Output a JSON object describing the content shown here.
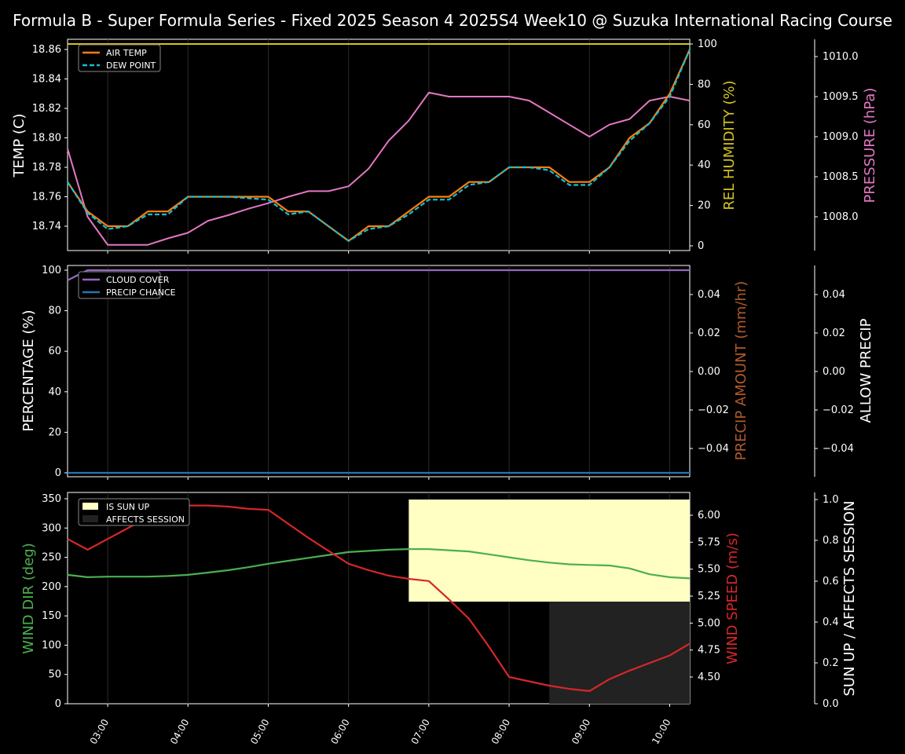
{
  "title": "Formula B - Super Formula Series - Fixed 2025 Season 4 2025S4 Week10 @ Suzuka International Racing Course",
  "x_ticks": [
    "03:00",
    "04:00",
    "05:00",
    "06:00",
    "07:00",
    "08:00",
    "09:00",
    "10:00"
  ],
  "chart_data": [
    {
      "type": "line",
      "panel": "top",
      "ylabel": "TEMP (C)",
      "ylim": [
        18.725,
        18.865
      ],
      "yticks": [
        "18.74",
        "18.76",
        "18.78",
        "18.80",
        "18.82",
        "18.84",
        "18.86"
      ],
      "y2label": "REL HUMIDITY (%)",
      "y2ticks": [
        "0",
        "20",
        "40",
        "60",
        "80",
        "100"
      ],
      "y3label": "PRESSURE (hPa)",
      "y3ticks": [
        "1008.0",
        "1008.5",
        "1009.0",
        "1009.5",
        "1010.0"
      ],
      "legend": [
        "AIR TEMP",
        "DEW POINT"
      ],
      "legend_position": "top-left",
      "x": [
        "02:30",
        "02:45",
        "03:00",
        "03:15",
        "03:30",
        "03:45",
        "04:00",
        "04:15",
        "04:30",
        "04:45",
        "05:00",
        "05:15",
        "05:30",
        "05:45",
        "06:00",
        "06:15",
        "06:30",
        "06:45",
        "07:00",
        "07:15",
        "07:30",
        "07:45",
        "08:00",
        "08:15",
        "08:30",
        "08:45",
        "09:00",
        "09:15",
        "09:30",
        "09:45",
        "10:00",
        "10:15"
      ],
      "series": [
        {
          "name": "AIR TEMP",
          "color": "#ff7f0e",
          "values": [
            18.77,
            18.75,
            18.74,
            18.74,
            18.75,
            18.75,
            18.76,
            18.76,
            18.76,
            18.76,
            18.76,
            18.75,
            18.75,
            18.74,
            18.73,
            18.74,
            18.74,
            18.75,
            18.76,
            18.76,
            18.77,
            18.77,
            18.78,
            18.78,
            18.78,
            18.77,
            18.77,
            18.78,
            18.8,
            18.81,
            18.83,
            18.86
          ]
        },
        {
          "name": "DEW POINT",
          "color": "#17becf",
          "dashed": true,
          "values": [
            18.77,
            18.749,
            18.738,
            18.74,
            18.748,
            18.748,
            18.76,
            18.76,
            18.76,
            18.759,
            18.758,
            18.748,
            18.75,
            18.74,
            18.73,
            18.738,
            18.74,
            18.748,
            18.758,
            18.758,
            18.768,
            18.77,
            18.78,
            18.78,
            18.778,
            18.768,
            18.768,
            18.78,
            18.798,
            18.81,
            18.828,
            18.86
          ]
        },
        {
          "name": "REL HUMIDITY",
          "color": "#d4c31f",
          "values": [
            100,
            100,
            100,
            100,
            100,
            100,
            100,
            100,
            100,
            100,
            100,
            100,
            100,
            100,
            100,
            100,
            100,
            100,
            100,
            100,
            100,
            100,
            100,
            100,
            100,
            100,
            100,
            100,
            100,
            100,
            100,
            100
          ]
        },
        {
          "name": "PRESSURE",
          "color": "#e377c2",
          "values": [
            1008.85,
            1008.0,
            1007.65,
            1007.65,
            1007.65,
            1007.73,
            1007.8,
            1007.95,
            1008.02,
            1008.1,
            1008.17,
            1008.25,
            1008.32,
            1008.32,
            1008.38,
            1008.6,
            1008.95,
            1009.2,
            1009.55,
            1009.5,
            1009.5,
            1009.5,
            1009.5,
            1009.45,
            1009.3,
            1009.15,
            1009.0,
            1009.15,
            1009.22,
            1009.45,
            1009.5,
            1009.45
          ]
        }
      ]
    },
    {
      "type": "line",
      "panel": "middle",
      "ylabel": "PERCENTAGE (%)",
      "yticks": [
        "0",
        "20",
        "40",
        "60",
        "80",
        "100"
      ],
      "ylim": [
        -2,
        103
      ],
      "y2label": "PRECIP AMOUNT (mm/hr)",
      "y2ticks": [
        "−0.04",
        "−0.02",
        "0.00",
        "0.02",
        "0.04"
      ],
      "y3label": "ALLOW PRECIP",
      "y3ticks": [
        "−0.04",
        "−0.02",
        "0.00",
        "0.02",
        "0.04"
      ],
      "legend": [
        "CLOUD COVER",
        "PRECIP CHANCE"
      ],
      "legend_position": "top-left",
      "series": [
        {
          "name": "CLOUD COVER",
          "color": "#9467bd",
          "x": [
            "02:30",
            "02:45",
            "10:15"
          ],
          "values": [
            95,
            100,
            100
          ]
        },
        {
          "name": "PRECIP CHANCE",
          "color": "#1f77b4",
          "x": [
            "02:30",
            "10:15"
          ],
          "values": [
            0,
            0
          ]
        }
      ]
    },
    {
      "type": "line",
      "panel": "bottom",
      "ylabel": "WIND DIR (deg)",
      "yticks": [
        "0",
        "50",
        "100",
        "150",
        "200",
        "250",
        "300",
        "350"
      ],
      "ylim": [
        0,
        360
      ],
      "y2label": "WIND SPEED (m/s)",
      "y2ticks": [
        "4.50",
        "4.75",
        "5.00",
        "5.25",
        "5.50",
        "5.75",
        "6.00"
      ],
      "y3label": "SUN UP / AFFECTS SESSION",
      "y3ticks": [
        "0.0",
        "0.2",
        "0.4",
        "0.6",
        "0.8",
        "1.0"
      ],
      "legend": [
        "IS SUN UP",
        "AFFECTS SESSION"
      ],
      "legend_position": "top-left",
      "x": [
        "02:30",
        "02:45",
        "03:00",
        "03:15",
        "03:30",
        "03:45",
        "04:00",
        "04:15",
        "04:30",
        "04:45",
        "05:00",
        "05:15",
        "05:30",
        "05:45",
        "06:00",
        "06:15",
        "06:30",
        "06:45",
        "07:00",
        "07:15",
        "07:30",
        "07:45",
        "08:00",
        "08:15",
        "08:30",
        "08:45",
        "09:00",
        "09:15",
        "09:30",
        "09:45",
        "10:00",
        "10:15"
      ],
      "series": [
        {
          "name": "WIND DIR",
          "color": "#4caf50",
          "values": [
            220,
            216,
            217,
            217,
            217,
            218,
            220,
            224,
            228,
            233,
            239,
            244,
            249,
            254,
            259,
            261,
            263,
            264,
            264,
            262,
            260,
            255,
            250,
            245,
            241,
            238,
            237,
            236,
            231,
            221,
            216,
            214
          ]
        },
        {
          "name": "WIND SPEED",
          "color": "#d62728",
          "values": [
            5.78,
            5.68,
            5.78,
            5.88,
            5.98,
            6.05,
            6.09,
            6.09,
            6.08,
            6.06,
            6.05,
            5.92,
            5.79,
            5.67,
            5.55,
            5.49,
            5.44,
            5.41,
            5.39,
            5.22,
            5.04,
            4.78,
            4.5,
            4.46,
            4.42,
            4.39,
            4.37,
            4.48,
            4.56,
            4.63,
            4.7,
            4.81
          ]
        }
      ],
      "areas": [
        {
          "name": "IS SUN UP",
          "color": "#ffffc4",
          "x_range": [
            "06:45",
            "10:15"
          ],
          "y_range": [
            0.5,
            1.0
          ]
        },
        {
          "name": "AFFECTS SESSION",
          "color": "#222222",
          "x_range": [
            "08:30",
            "10:15"
          ],
          "y_range": [
            0.0,
            0.5
          ]
        }
      ]
    }
  ]
}
